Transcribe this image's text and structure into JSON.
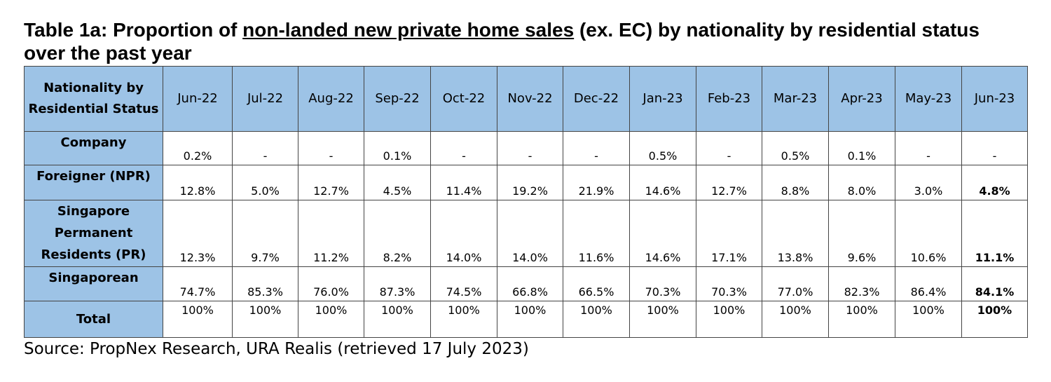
{
  "title": {
    "prefix": "Table 1a: Proportion of ",
    "underlined": "non-landed new private home sales",
    "suffix": " (ex. EC) by nationality by residential status over the past year"
  },
  "table": {
    "corner": "Nationality by Residential Status",
    "months": [
      "Jun-22",
      "Jul-22",
      "Aug-22",
      "Sep-22",
      "Oct-22",
      "Nov-22",
      "Dec-22",
      "Jan-23",
      "Feb-23",
      "Mar-23",
      "Apr-23",
      "May-23",
      "Jun-23"
    ],
    "rows": [
      {
        "label": "Company",
        "values": [
          "0.2%",
          "-",
          "-",
          "0.1%",
          "-",
          "-",
          "-",
          "0.5%",
          "-",
          "0.5%",
          "0.1%",
          "-",
          "-"
        ]
      },
      {
        "label": "Foreigner (NPR)",
        "values": [
          "12.8%",
          "5.0%",
          "12.7%",
          "4.5%",
          "11.4%",
          "19.2%",
          "21.9%",
          "14.6%",
          "12.7%",
          "8.8%",
          "8.0%",
          "3.0%",
          "4.8%"
        ]
      },
      {
        "label": "Singapore Permanent Residents (PR)",
        "values": [
          "12.3%",
          "9.7%",
          "11.2%",
          "8.2%",
          "14.0%",
          "14.0%",
          "11.6%",
          "14.6%",
          "17.1%",
          "13.8%",
          "9.6%",
          "10.6%",
          "11.1%"
        ]
      },
      {
        "label": "Singaporean",
        "values": [
          "74.7%",
          "85.3%",
          "76.0%",
          "87.3%",
          "74.5%",
          "66.8%",
          "66.5%",
          "70.3%",
          "70.3%",
          "77.0%",
          "82.3%",
          "86.4%",
          "84.1%"
        ]
      },
      {
        "label": "Total",
        "values": [
          "100%",
          "100%",
          "100%",
          "100%",
          "100%",
          "100%",
          "100%",
          "100%",
          "100%",
          "100%",
          "100%",
          "100%",
          "100%"
        ]
      }
    ]
  },
  "source": "Source: PropNex Research, URA Realis (retrieved 17 July 2023)"
}
